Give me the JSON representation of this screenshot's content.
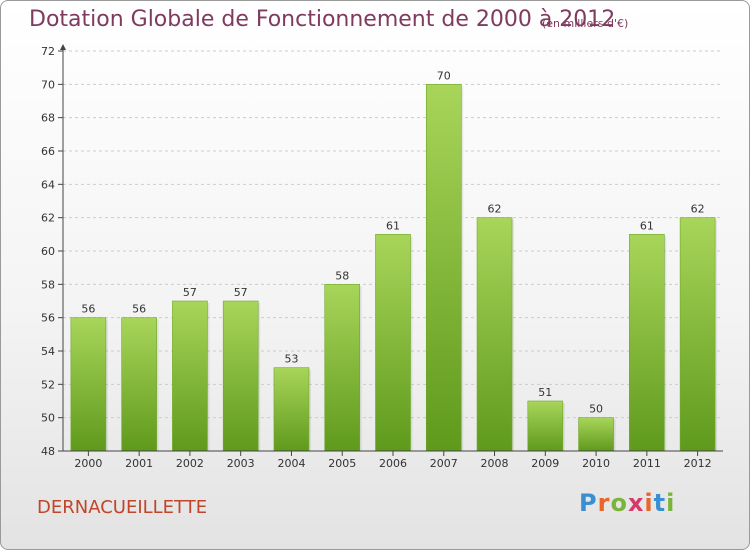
{
  "title": "Dotation Globale de Fonctionnement de 2000 à 2012",
  "subtitle": "(en milliers d'€)",
  "commune": "DERNACUEILLETTE",
  "logo": {
    "letters": [
      "P",
      "r",
      "o",
      "x",
      "i",
      "t",
      "i"
    ],
    "colors": [
      "#3a8fd1",
      "#e8662a",
      "#79b53b",
      "#d63a6a",
      "#e8662a",
      "#3a8fd1",
      "#79b53b"
    ]
  },
  "colors": {
    "bar_top": "#a8d55a",
    "bar_bottom": "#5f9a1c",
    "axis": "#444444",
    "grid": "#cccccc",
    "text": "#333333"
  },
  "chart_data": {
    "type": "bar",
    "categories": [
      "2000",
      "2001",
      "2002",
      "2003",
      "2004",
      "2005",
      "2006",
      "2007",
      "2008",
      "2009",
      "2010",
      "2011",
      "2012"
    ],
    "values": [
      56,
      56,
      57,
      57,
      53,
      58,
      61,
      70,
      62,
      51,
      50,
      61,
      62
    ],
    "ylim": [
      48,
      72
    ],
    "yticks": [
      48,
      50,
      52,
      54,
      56,
      58,
      60,
      62,
      64,
      66,
      68,
      70,
      72
    ],
    "grid": true,
    "data_labels": true
  }
}
